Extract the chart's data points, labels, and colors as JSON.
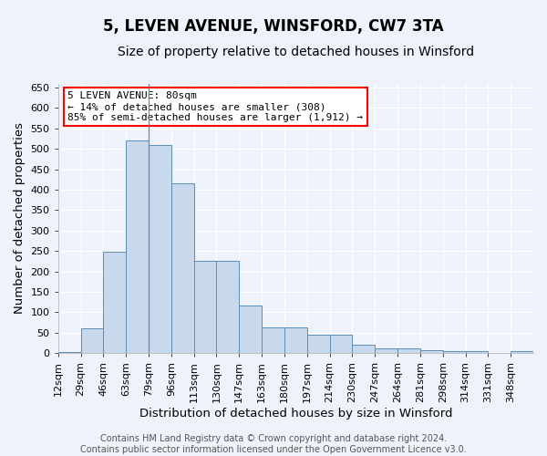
{
  "title1": "5, LEVEN AVENUE, WINSFORD, CW7 3TA",
  "title2": "Size of property relative to detached houses in Winsford",
  "xlabel": "Distribution of detached houses by size in Winsford",
  "ylabel": "Number of detached properties",
  "footer1": "Contains HM Land Registry data © Crown copyright and database right 2024.",
  "footer2": "Contains public sector information licensed under the Open Government Licence v3.0.",
  "annotation_line1": "5 LEVEN AVENUE: 80sqm",
  "annotation_line2": "← 14% of detached houses are smaller (308)",
  "annotation_line3": "85% of semi-detached houses are larger (1,912) →",
  "bar_color": "#c8d9ee",
  "bar_edge_color": "#5b8db8",
  "categories": [
    "12sqm",
    "29sqm",
    "46sqm",
    "63sqm",
    "79sqm",
    "96sqm",
    "113sqm",
    "130sqm",
    "147sqm",
    "163sqm",
    "180sqm",
    "197sqm",
    "214sqm",
    "230sqm",
    "247sqm",
    "264sqm",
    "281sqm",
    "298sqm",
    "314sqm",
    "331sqm",
    "348sqm"
  ],
  "values": [
    2,
    60,
    248,
    520,
    510,
    415,
    227,
    227,
    117,
    63,
    63,
    45,
    46,
    20,
    11,
    11,
    7,
    6,
    6,
    1,
    6
  ],
  "n_bars": 21,
  "ylim": [
    0,
    660
  ],
  "yticks": [
    0,
    50,
    100,
    150,
    200,
    250,
    300,
    350,
    400,
    450,
    500,
    550,
    600,
    650
  ],
  "background_color": "#eef2fb",
  "grid_color": "#ffffff",
  "title_fontsize": 12,
  "subtitle_fontsize": 10,
  "axis_label_fontsize": 9.5,
  "tick_fontsize": 8,
  "footer_fontsize": 7,
  "annotation_fontsize": 8,
  "annotation_box_color": "white",
  "annotation_box_edge": "red",
  "property_marker_bin": 4,
  "spine_color": "#aaaaaa"
}
